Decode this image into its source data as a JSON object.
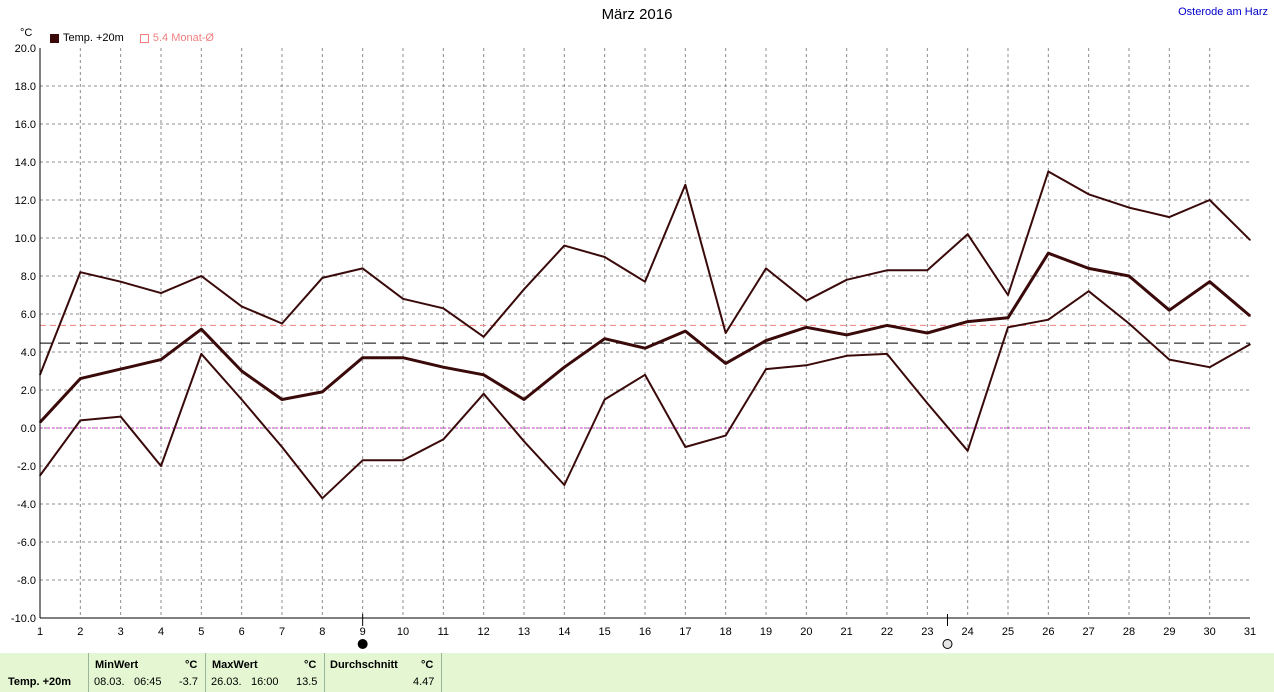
{
  "title": "März 2016",
  "location": "Osterode am Harz",
  "unit": "°C",
  "legend": {
    "main_label": "Temp. +20m",
    "avg_label": "5.4 Monat-Ø"
  },
  "colors": {
    "series": "#3a0a0a",
    "month_avg": "#f08080",
    "overall_avg": "#000000",
    "zero_line": "#cc33cc",
    "grid": "#8c8c8c",
    "footer_bg": "#e4f7d2"
  },
  "moon_phases": [
    {
      "day": 9,
      "phase": "new-moon"
    },
    {
      "day": 23.5,
      "phase": "full-moon"
    }
  ],
  "chart_data": {
    "type": "line",
    "x": [
      1,
      2,
      3,
      4,
      5,
      6,
      7,
      8,
      9,
      10,
      11,
      12,
      13,
      14,
      15,
      16,
      17,
      18,
      19,
      20,
      21,
      22,
      23,
      24,
      25,
      26,
      27,
      28,
      29,
      30,
      31
    ],
    "ylim": [
      -10,
      20
    ],
    "xlim": [
      1,
      31
    ],
    "yticks": [
      "20.0",
      "18.0",
      "16.0",
      "14.0",
      "12.0",
      "10.0",
      "8.0",
      "6.0",
      "4.0",
      "2.0",
      "0.0",
      "-2.0",
      "-4.0",
      "-6.0",
      "-8.0",
      "-10.0"
    ],
    "xticks": [
      "1",
      "2",
      "3",
      "4",
      "5",
      "6",
      "7",
      "8",
      "9",
      "10",
      "11",
      "12",
      "13",
      "14",
      "15",
      "16",
      "17",
      "18",
      "19",
      "20",
      "21",
      "22",
      "23",
      "24",
      "25",
      "26",
      "27",
      "28",
      "29",
      "30",
      "31"
    ],
    "grid": true,
    "reference_lines": [
      {
        "y": 5.4,
        "style": "month-average"
      },
      {
        "y": 4.47,
        "style": "overall-average"
      },
      {
        "y": 0,
        "style": "zero"
      }
    ],
    "series": [
      {
        "role": "max",
        "values": [
          2.8,
          8.2,
          7.7,
          7.1,
          8.0,
          6.4,
          5.5,
          7.9,
          8.4,
          6.8,
          6.3,
          4.8,
          7.3,
          9.6,
          9.0,
          7.7,
          12.8,
          5.0,
          8.4,
          6.7,
          7.8,
          8.3,
          8.3,
          10.2,
          7.0,
          13.5,
          12.3,
          11.6,
          11.1,
          12.0,
          9.9
        ]
      },
      {
        "role": "mean",
        "values": [
          0.3,
          2.6,
          3.1,
          3.6,
          5.2,
          3.0,
          1.5,
          1.9,
          3.7,
          3.7,
          3.2,
          2.8,
          1.5,
          3.2,
          4.7,
          4.2,
          5.1,
          3.4,
          4.6,
          5.3,
          4.9,
          5.4,
          5.0,
          5.6,
          5.8,
          9.2,
          8.4,
          8.0,
          6.2,
          7.7,
          5.9
        ]
      },
      {
        "role": "min",
        "values": [
          -2.5,
          0.4,
          0.6,
          -2.0,
          3.9,
          1.5,
          -1.0,
          -3.7,
          -1.7,
          -1.7,
          -0.6,
          1.8,
          -0.7,
          -3.0,
          1.5,
          2.8,
          -1.0,
          -0.4,
          3.1,
          3.3,
          3.8,
          3.9,
          1.3,
          -1.2,
          5.3,
          5.7,
          7.2,
          5.5,
          3.6,
          3.2,
          4.4
        ]
      }
    ]
  },
  "footer": {
    "series_label": "Temp. +20m",
    "min": {
      "header": "MinWert",
      "unit": "°C",
      "date": "08.03.",
      "time": "06:45",
      "value": "-3.7"
    },
    "max": {
      "header": "MaxWert",
      "unit": "°C",
      "date": "26.03.",
      "time": "16:00",
      "value": "13.5"
    },
    "avg": {
      "header": "Durchschnitt",
      "unit": "°C",
      "value": "4.47"
    }
  }
}
